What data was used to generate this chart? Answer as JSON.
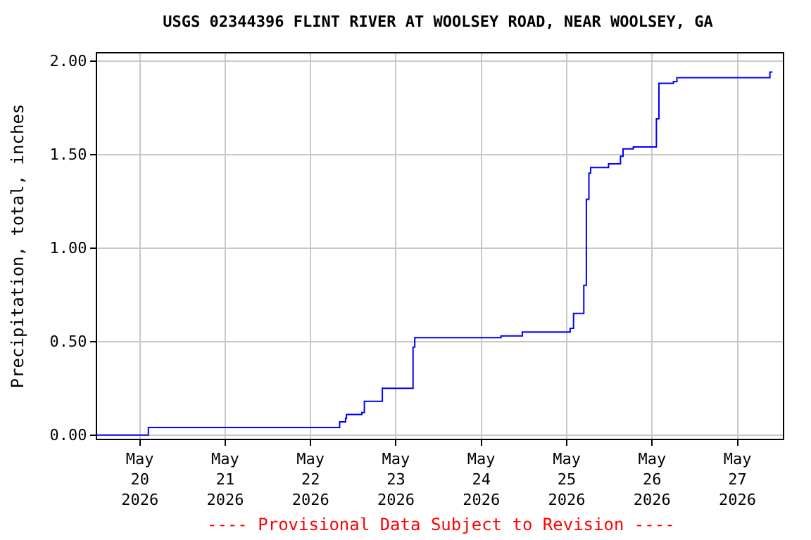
{
  "chart_data": {
    "type": "step",
    "title": "USGS 02344396 FLINT RIVER AT WOOLSEY ROAD, NEAR WOOLSEY, GA",
    "ylabel": "Precipitation, total, inches",
    "x": [
      "2026-05-19T12:00",
      "2026-05-20T02:24",
      "2026-05-22T08:10",
      "2026-05-22T09:50",
      "2026-05-22T10:05",
      "2026-05-22T14:24",
      "2026-05-22T15:07",
      "2026-05-22T20:10",
      "2026-05-23T04:48",
      "2026-05-23T05:17",
      "2026-05-24T05:31",
      "2026-05-24T11:31",
      "2026-05-25T00:58",
      "2026-05-25T01:55",
      "2026-05-25T04:48",
      "2026-05-25T05:31",
      "2026-05-25T06:14",
      "2026-05-25T06:43",
      "2026-05-25T11:46",
      "2026-05-25T15:07",
      "2026-05-25T15:50",
      "2026-05-25T18:43",
      "2026-05-26T01:12",
      "2026-05-26T01:55",
      "2026-05-26T06:00",
      "2026-05-26T06:58",
      "2026-05-27T09:07",
      "2026-05-27T09:50"
    ],
    "series": [
      {
        "color": "#0000ff",
        "values": [
          0.0,
          0.04,
          0.07,
          0.09,
          0.11,
          0.12,
          0.18,
          0.25,
          0.47,
          0.52,
          0.53,
          0.55,
          0.57,
          0.65,
          0.8,
          1.26,
          1.4,
          1.43,
          1.45,
          1.49,
          1.53,
          1.54,
          1.69,
          1.88,
          1.89,
          1.91,
          1.94,
          1.94
        ]
      }
    ],
    "xlim": [
      "2026-05-19T12:00",
      "2026-05-27T12:45"
    ],
    "xticks": [
      {
        "value": "2026-05-20",
        "label": "May\n20\n2026"
      },
      {
        "value": "2026-05-21",
        "label": "May\n21\n2026"
      },
      {
        "value": "2026-05-22",
        "label": "May\n22\n2026"
      },
      {
        "value": "2026-05-23",
        "label": "May\n23\n2026"
      },
      {
        "value": "2026-05-24",
        "label": "May\n24\n2026"
      },
      {
        "value": "2026-05-25",
        "label": "May\n25\n2026"
      },
      {
        "value": "2026-05-26",
        "label": "May\n26\n2026"
      },
      {
        "value": "2026-05-27",
        "label": "May\n27\n2026"
      }
    ],
    "ylim": [
      -0.02,
      2.04
    ],
    "yticks": [
      {
        "value": 0,
        "label": "0.00"
      },
      {
        "value": 0.5,
        "label": "0.50"
      },
      {
        "value": 1.0,
        "label": "1.00"
      },
      {
        "value": 1.5,
        "label": "1.50"
      },
      {
        "value": 2.0,
        "label": "2.00"
      }
    ],
    "grid": true,
    "annotations": [
      "---- Provisional Data Subject to Revision ----"
    ]
  }
}
